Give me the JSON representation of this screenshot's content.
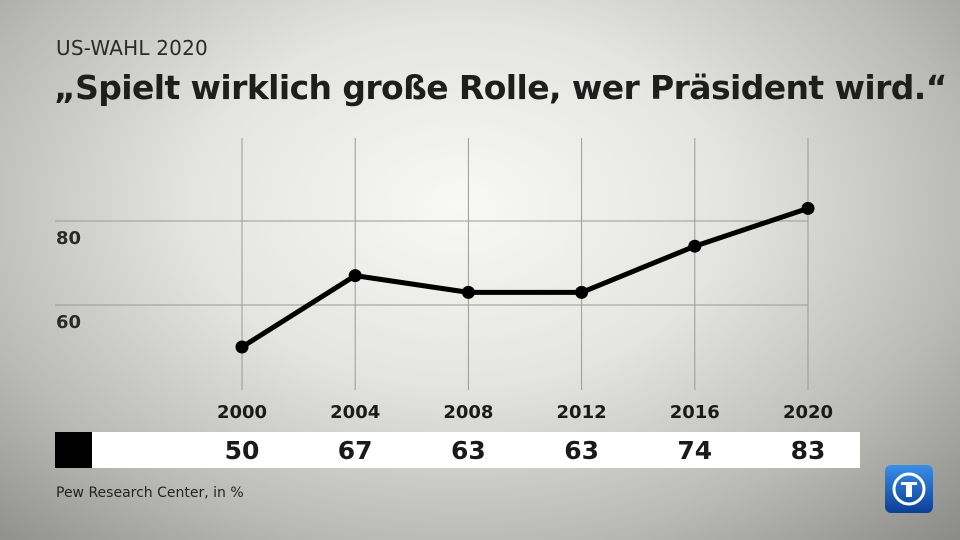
{
  "header": {
    "kicker": "US-WAHL 2020",
    "title": "„Spielt wirklich große Rolle, wer Präsident wird.“"
  },
  "chart_data": {
    "type": "line",
    "title": "„Spielt wirklich große Rolle, wer Präsident wird.“",
    "x": [
      "2000",
      "2004",
      "2008",
      "2012",
      "2016",
      "2020"
    ],
    "series": [
      {
        "values": [
          50,
          67,
          63,
          63,
          74,
          83
        ]
      }
    ],
    "yticks": [
      60,
      80
    ],
    "ylim": [
      40,
      100
    ],
    "grid": true,
    "colors": {
      "line": "#000000",
      "grid": "#999999"
    }
  },
  "value_band": {
    "swatch_color": "#000000",
    "values": [
      "50",
      "67",
      "63",
      "63",
      "74",
      "83"
    ]
  },
  "source": "Pew Research Center, in %",
  "logo": {
    "icon": "tagesschau-logo-icon",
    "color": "#1a5fc1"
  }
}
